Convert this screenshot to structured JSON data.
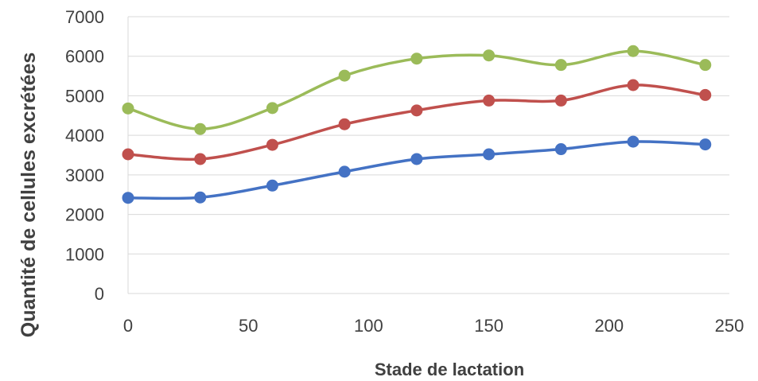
{
  "chart_data": {
    "type": "line",
    "title": "",
    "xlabel": "Stade de lactation",
    "ylabel": "Quantité de cellules excrétées",
    "xlim": [
      0,
      250
    ],
    "ylim": [
      0,
      7000
    ],
    "x_ticks": [
      0,
      50,
      100,
      150,
      200,
      250
    ],
    "y_ticks": [
      0,
      1000,
      2000,
      3000,
      4000,
      5000,
      6000,
      7000
    ],
    "grid": "horizontal",
    "legend": "none",
    "smooth": true,
    "x": [
      0,
      30,
      60,
      90,
      120,
      150,
      180,
      210,
      240
    ],
    "series": [
      {
        "color": "#4472C4",
        "values": [
          2420,
          2430,
          2730,
          3080,
          3400,
          3520,
          3650,
          3840,
          3770
        ]
      },
      {
        "color": "#C0504D",
        "values": [
          3520,
          3400,
          3760,
          4280,
          4630,
          4880,
          4880,
          5270,
          5020
        ]
      },
      {
        "color": "#9BBB59",
        "values": [
          4680,
          4160,
          4690,
          5510,
          5940,
          6020,
          5780,
          6130,
          5780
        ]
      }
    ]
  }
}
